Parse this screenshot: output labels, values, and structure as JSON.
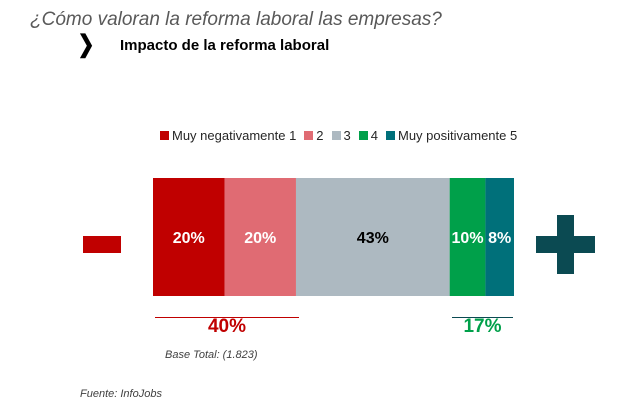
{
  "header": {
    "question": "¿Cómo valoran la reforma laboral las empresas?",
    "chevron": "❯",
    "subtitle": "Impacto de la reforma laboral"
  },
  "chart_data": {
    "type": "bar",
    "orientation": "horizontal-stacked-100",
    "categories": [
      "Impacto de la reforma laboral"
    ],
    "series": [
      {
        "name": "Muy negativamente 1",
        "values": [
          20
        ],
        "label": "20%",
        "color": "#C00000",
        "label_color": "#ffffff"
      },
      {
        "name": "2",
        "values": [
          20
        ],
        "label": "20%",
        "color": "#E06B73",
        "label_color": "#ffffff"
      },
      {
        "name": "3",
        "values": [
          43
        ],
        "label": "43%",
        "color": "#ADB9C1",
        "label_color": "#000000"
      },
      {
        "name": "4",
        "values": [
          10
        ],
        "label": "10%",
        "color": "#00A04A",
        "label_color": "#ffffff"
      },
      {
        "name": "Muy positivamente 5",
        "values": [
          8
        ],
        "label": "8%",
        "color": "#00707A",
        "label_color": "#ffffff"
      }
    ],
    "xlim": [
      0,
      101
    ],
    "legend": "top"
  },
  "summary": {
    "negative_total": "40%",
    "negative_color": "#C00000",
    "positive_total": "17%",
    "positive_color": "#00A04A",
    "minus_color": "#C00000",
    "plus_color": "#0B4A52"
  },
  "footer": {
    "base": "Base Total: (1.823)",
    "source": "Fuente: InfoJobs"
  }
}
